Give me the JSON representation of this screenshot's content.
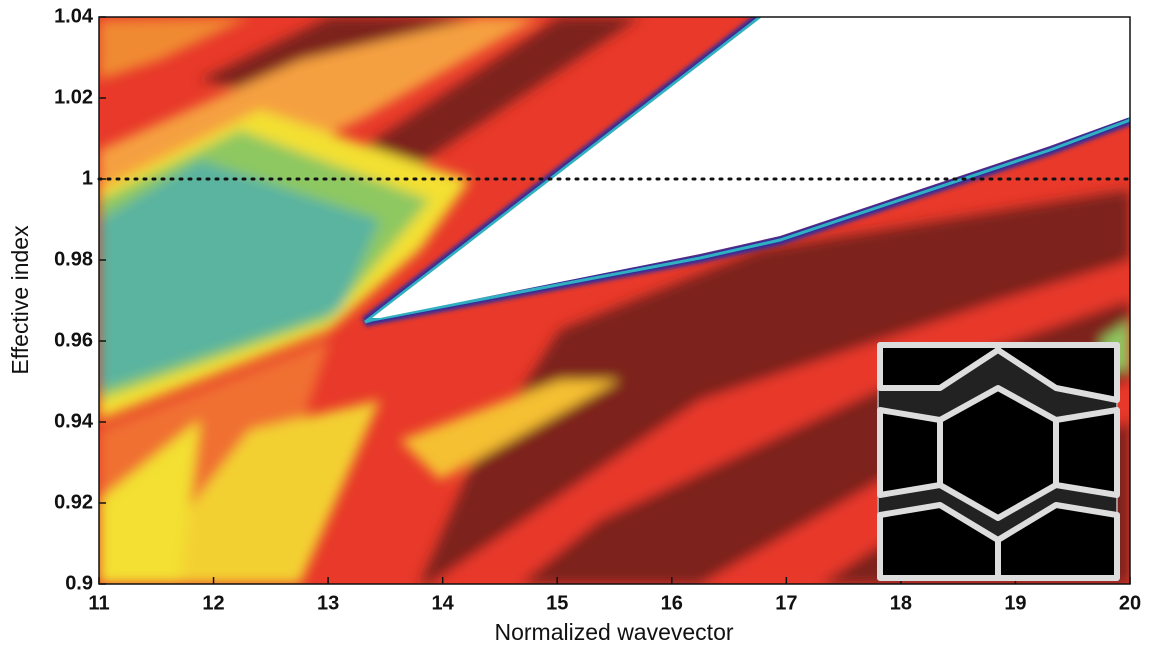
{
  "chart_data": {
    "type": "heatmap",
    "x_label": "Normalized wavevector",
    "y_label": "Effective index",
    "xlim": [
      11,
      20
    ],
    "ylim": [
      0.9,
      1.04
    ],
    "xticks": [
      11,
      12,
      13,
      14,
      15,
      16,
      17,
      18,
      19,
      20
    ],
    "yticks": [
      0.9,
      0.92,
      0.94,
      0.96,
      0.98,
      1,
      1.02,
      1.04
    ],
    "reference_line": 1
  }
}
